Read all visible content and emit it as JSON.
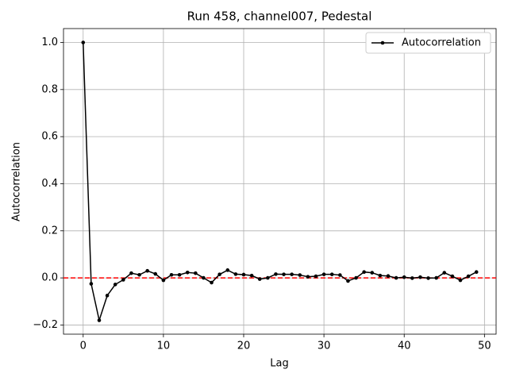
{
  "chart_data": {
    "type": "line",
    "title": "Run 458, channel007, Pedestal",
    "x_label": "Lag",
    "y_label": "Autocorrelation",
    "x": [
      0,
      1,
      2,
      3,
      4,
      5,
      6,
      7,
      8,
      9,
      10,
      11,
      12,
      13,
      14,
      15,
      16,
      17,
      18,
      19,
      20,
      21,
      22,
      23,
      24,
      25,
      26,
      27,
      28,
      29,
      30,
      31,
      32,
      33,
      34,
      35,
      36,
      37,
      38,
      39,
      40,
      41,
      42,
      43,
      44,
      45,
      46,
      47,
      48,
      49
    ],
    "series": [
      {
        "name": "Autocorrelation",
        "color": "#000000",
        "values": [
          1.0,
          -0.025,
          -0.18,
          -0.075,
          -0.028,
          -0.008,
          0.02,
          0.013,
          0.03,
          0.017,
          -0.01,
          0.013,
          0.013,
          0.023,
          0.02,
          0.0,
          -0.02,
          0.015,
          0.033,
          0.016,
          0.014,
          0.01,
          -0.005,
          0.0,
          0.016,
          0.015,
          0.015,
          0.012,
          0.005,
          0.007,
          0.015,
          0.015,
          0.012,
          -0.013,
          0.0,
          0.025,
          0.022,
          0.01,
          0.008,
          0.0,
          0.003,
          -0.001,
          0.003,
          -0.001,
          0.0,
          0.022,
          0.007,
          -0.01,
          0.007,
          0.025
        ]
      }
    ],
    "reference_line": {
      "value": 0,
      "color": "#ff0000"
    },
    "xlim": [
      -2.45,
      51.45
    ],
    "ylim": [
      -0.239,
      1.059
    ],
    "xticks": [
      0,
      10,
      20,
      30,
      40,
      50
    ],
    "yticks": [
      {
        "value": -0.2,
        "label": "−0.2"
      },
      {
        "value": 0,
        "label": "0.0"
      },
      {
        "value": 0.2,
        "label": "0.2"
      },
      {
        "value": 0.4,
        "label": "0.4"
      },
      {
        "value": 0.6,
        "label": "0.6"
      },
      {
        "value": 0.8,
        "label": "0.8"
      },
      {
        "value": 1.0,
        "label": "1.0"
      }
    ],
    "grid": true,
    "legend": "upper right"
  }
}
